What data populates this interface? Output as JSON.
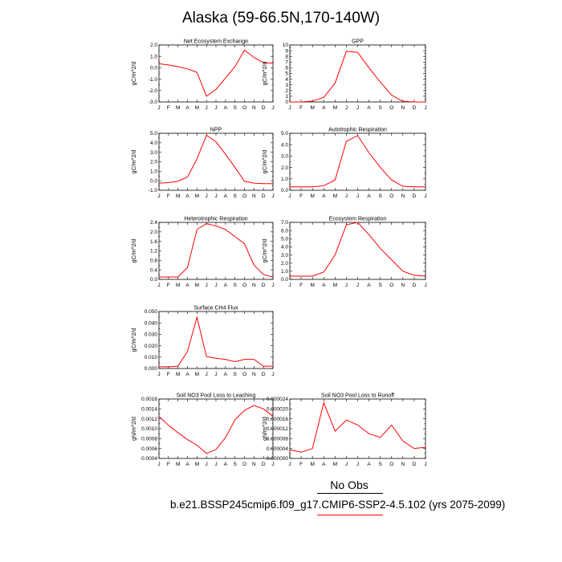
{
  "main_title": "Alaska (59-66.5N,170-140W)",
  "legend": {
    "obs_label": "No Obs",
    "case_label": "b.e21.BSSP245cmip6.f09_g17.CMIP6-SSP2-4.5.102 (yrs 2075-2099)"
  },
  "colors": {
    "line": "#ff0000",
    "axis": "#000000"
  },
  "chart_data": [
    {
      "type": "line",
      "title": "Net Ecosystem Exchange",
      "ylabel": "gC/m^2/d",
      "categories": [
        "J",
        "F",
        "M",
        "A",
        "M",
        "J",
        "J",
        "A",
        "S",
        "O",
        "N",
        "D",
        "J"
      ],
      "ylim": [
        -3.0,
        2.0
      ],
      "yticks": [
        "2.0",
        "1.0",
        "0.0",
        "-1.0",
        "-2.0",
        "-3.0"
      ],
      "values": [
        0.35,
        0.25,
        0.1,
        -0.1,
        -0.4,
        -2.5,
        -1.9,
        -0.9,
        0.1,
        1.55,
        0.9,
        0.45,
        0.4
      ]
    },
    {
      "type": "line",
      "title": "GPP",
      "ylabel": "gC/m^2/d",
      "categories": [
        "J",
        "F",
        "M",
        "A",
        "M",
        "J",
        "J",
        "A",
        "S",
        "O",
        "N",
        "D",
        "J"
      ],
      "ylim": [
        0,
        10
      ],
      "yticks": [
        "10",
        "9",
        "8",
        "7",
        "6",
        "5",
        "4",
        "3",
        "2",
        "1",
        "0"
      ],
      "values": [
        0.0,
        0.0,
        0.15,
        0.8,
        3.3,
        8.9,
        8.7,
        6.0,
        3.5,
        1.2,
        0.1,
        0.0,
        0.0
      ]
    },
    {
      "type": "line",
      "title": "NPP",
      "ylabel": "gC/m^2/d",
      "categories": [
        "J",
        "F",
        "M",
        "A",
        "M",
        "J",
        "J",
        "A",
        "S",
        "O",
        "N",
        "D",
        "J"
      ],
      "ylim": [
        -1.0,
        5.0
      ],
      "yticks": [
        "5.0",
        "4.0",
        "3.0",
        "2.0",
        "1.0",
        "0.0",
        "-1.0"
      ],
      "values": [
        -0.25,
        -0.2,
        -0.05,
        0.4,
        2.3,
        4.8,
        4.1,
        2.8,
        1.4,
        -0.05,
        -0.25,
        -0.3,
        -0.3
      ]
    },
    {
      "type": "line",
      "title": "Autotrophic Respiration",
      "ylabel": "gC/m^2/d",
      "categories": [
        "J",
        "F",
        "M",
        "A",
        "M",
        "J",
        "J",
        "A",
        "S",
        "O",
        "N",
        "D",
        "J"
      ],
      "ylim": [
        0,
        5.0
      ],
      "yticks": [
        "5.0",
        "4.0",
        "3.0",
        "2.0",
        "1.0",
        "0.0"
      ],
      "values": [
        0.3,
        0.3,
        0.3,
        0.4,
        0.9,
        4.3,
        4.8,
        3.3,
        2.0,
        0.9,
        0.35,
        0.3,
        0.3
      ]
    },
    {
      "type": "line",
      "title": "Heterotrophic Respiration",
      "ylabel": "gC/m^2/d",
      "categories": [
        "J",
        "F",
        "M",
        "A",
        "M",
        "J",
        "J",
        "A",
        "S",
        "O",
        "N",
        "D",
        "J"
      ],
      "ylim": [
        0,
        2.4
      ],
      "yticks": [
        "2.4",
        "2.0",
        "1.6",
        "1.2",
        "0.8",
        "0.4",
        "0.0"
      ],
      "values": [
        0.1,
        0.1,
        0.1,
        0.5,
        2.1,
        2.35,
        2.25,
        2.1,
        1.8,
        1.5,
        0.6,
        0.2,
        0.1
      ]
    },
    {
      "type": "line",
      "title": "Ecosystem Respiration",
      "ylabel": "gC/m^2/d",
      "categories": [
        "J",
        "F",
        "M",
        "A",
        "M",
        "J",
        "J",
        "A",
        "S",
        "O",
        "N",
        "D",
        "J"
      ],
      "ylim": [
        0,
        7.0
      ],
      "yticks": [
        "7.0",
        "6.0",
        "5.0",
        "4.0",
        "3.0",
        "2.0",
        "1.0",
        "0.0"
      ],
      "values": [
        0.4,
        0.4,
        0.4,
        0.9,
        3.0,
        6.7,
        7.0,
        5.5,
        3.8,
        2.4,
        1.0,
        0.5,
        0.4
      ]
    },
    {
      "type": "line",
      "title": "Surface CH4 Flux",
      "ylabel": "gC/m^2/d",
      "categories": [
        "J",
        "F",
        "M",
        "A",
        "M",
        "J",
        "J",
        "A",
        "S",
        "O",
        "N",
        "D",
        "J"
      ],
      "ylim": [
        0,
        0.05
      ],
      "yticks": [
        "0.050",
        "0.040",
        "0.030",
        "0.020",
        "0.010",
        "0.000"
      ],
      "values": [
        0.0015,
        0.0015,
        0.002,
        0.015,
        0.045,
        0.0105,
        0.009,
        0.008,
        0.006,
        0.008,
        0.008,
        0.002,
        0.002
      ]
    },
    {
      "type": "line",
      "title": "Soil NO3 Pool Loss to Leaching",
      "ylabel": "gN/m^2/d",
      "categories": [
        "J",
        "F",
        "M",
        "A",
        "M",
        "J",
        "J",
        "A",
        "S",
        "O",
        "N",
        "D",
        "J"
      ],
      "ylim": [
        0.0004,
        0.0016
      ],
      "yticks": [
        "0.0016",
        "0.0014",
        "0.0012",
        "0.0010",
        "0.0008",
        "0.0006",
        "0.0004"
      ],
      "values": [
        0.00125,
        0.00107,
        0.00092,
        0.00078,
        0.00067,
        0.0005,
        0.00058,
        0.00082,
        0.00118,
        0.00137,
        0.00147,
        0.0014,
        0.00125
      ]
    },
    {
      "type": "line",
      "title": "Soil NO3 Pool Loss to Runoff",
      "ylabel": "gN/m^2/d",
      "categories": [
        "J",
        "F",
        "M",
        "A",
        "M",
        "J",
        "J",
        "A",
        "S",
        "O",
        "N",
        "D",
        "J"
      ],
      "ylim": [
        0,
        2.4e-05
      ],
      "yticks": [
        "0.000024",
        "0.000020",
        "0.000016",
        "0.000012",
        "0.000008",
        "0.000004",
        "0.000000"
      ],
      "values": [
        3.5e-06,
        2.5e-06,
        4e-06,
        2.25e-05,
        1.1e-05,
        1.55e-05,
        1.35e-05,
        1e-05,
        8.5e-06,
        1.35e-05,
        7e-06,
        4e-06,
        4.5e-06
      ]
    }
  ]
}
